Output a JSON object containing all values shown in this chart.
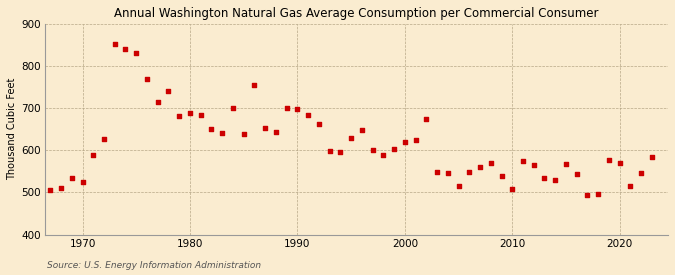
{
  "title": "Annual Washington Natural Gas Average Consumption per Commercial Consumer",
  "ylabel": "Thousand Cubic Feet",
  "source": "Source: U.S. Energy Information Administration",
  "background_color": "#faecd0",
  "marker_color": "#cc0000",
  "xlim": [
    1966.5,
    2024.5
  ],
  "ylim": [
    400,
    900
  ],
  "yticks": [
    400,
    500,
    600,
    700,
    800,
    900
  ],
  "xticks": [
    1970,
    1980,
    1990,
    2000,
    2010,
    2020
  ],
  "years": [
    1967,
    1968,
    1969,
    1970,
    1971,
    1972,
    1973,
    1974,
    1975,
    1976,
    1977,
    1978,
    1979,
    1980,
    1981,
    1982,
    1983,
    1984,
    1985,
    1986,
    1987,
    1988,
    1989,
    1990,
    1991,
    1992,
    1993,
    1994,
    1995,
    1996,
    1997,
    1998,
    1999,
    2000,
    2001,
    2002,
    2003,
    2004,
    2005,
    2006,
    2007,
    2008,
    2009,
    2010,
    2011,
    2012,
    2013,
    2014,
    2015,
    2016,
    2017,
    2018,
    2019,
    2020,
    2021,
    2022,
    2023
  ],
  "values": [
    505,
    510,
    535,
    525,
    590,
    628,
    852,
    840,
    830,
    770,
    714,
    740,
    682,
    688,
    685,
    650,
    640,
    700,
    638,
    755,
    652,
    643,
    700,
    697,
    685,
    662,
    598,
    597,
    630,
    648,
    601,
    590,
    603,
    620,
    624,
    674,
    548,
    546,
    515,
    548,
    560,
    570,
    540,
    508,
    575,
    565,
    535,
    530,
    568,
    545,
    493,
    497,
    576,
    570,
    515,
    546,
    585
  ]
}
